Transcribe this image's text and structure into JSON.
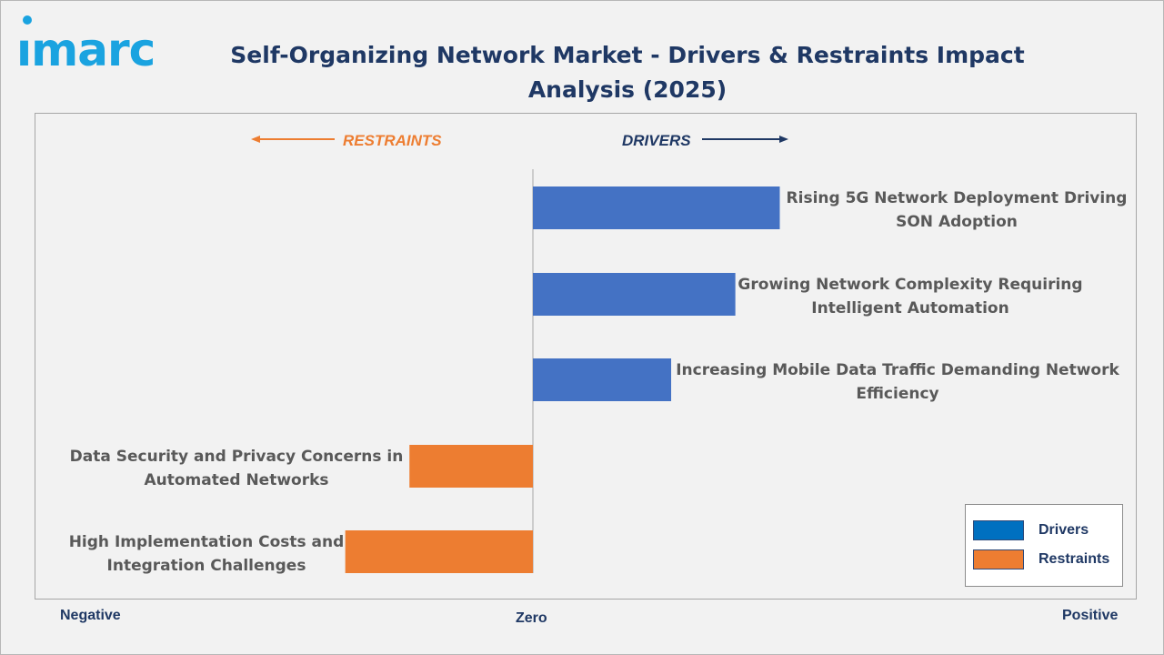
{
  "logo": {
    "text": "ımarc",
    "color": "#1aa3e0"
  },
  "title": "Self-Organizing Network Market - Drivers & Restraints Impact Analysis (2025)",
  "header_labels": {
    "restraints": "RESTRAINTS",
    "drivers": "DRIVERS"
  },
  "axis": {
    "negative": "Negative",
    "zero": "Zero",
    "positive": "Positive"
  },
  "legend": [
    {
      "label": "Drivers",
      "color": "#4472c4"
    },
    {
      "label": "Restraints",
      "color": "#ed7d31"
    }
  ],
  "colors": {
    "drivers": "#4472c4",
    "restraints": "#ed7d31",
    "title": "#1f3864",
    "label": "#595959"
  },
  "chart_data": {
    "type": "bar",
    "orientation": "horizontal",
    "title": "Self-Organizing Network Market - Drivers & Restraints Impact Analysis (2025)",
    "xlim": [
      -1,
      1
    ],
    "grid": false,
    "legend_position": "bottom-right",
    "categories": [
      "Rising 5G Network Deployment Driving SON Adoption",
      "Growing Network Complexity Requiring Intelligent Automation",
      "Increasing Mobile Data Traffic Demanding Network Efficiency",
      "Data Security and Privacy Concerns in Automated Networks",
      "High Implementation Costs and Integration Challenges"
    ],
    "series": [
      {
        "name": "Drivers",
        "values": [
          0.5,
          0.41,
          0.28,
          null,
          null
        ]
      },
      {
        "name": "Restraints",
        "values": [
          null,
          null,
          null,
          -0.25,
          -0.38
        ]
      }
    ]
  }
}
